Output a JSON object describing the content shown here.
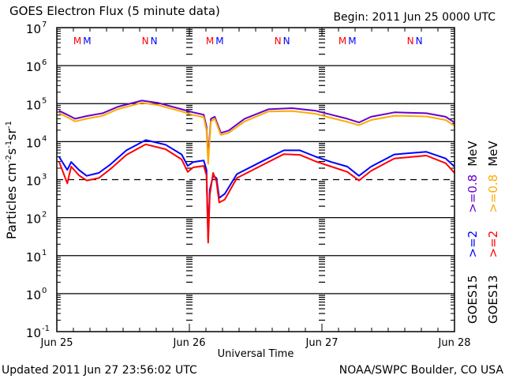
{
  "header": {
    "title": "GOES Electron Flux (5 minute data)",
    "begin": "Begin: 2011 Jun 25 0000 UTC"
  },
  "footer": {
    "updated": "Updated 2011 Jun 27 23:56:02 UTC",
    "source": "NOAA/SWPC Boulder, CO USA"
  },
  "colors": {
    "goes15_2": "#0000ff",
    "goes13_2": "#ff0000",
    "goes15_08": "#6600cc",
    "goes13_08": "#ffaa00"
  },
  "chart_data": {
    "type": "line",
    "title": "GOES Electron Flux (5 minute data)",
    "xlabel": "Universal Time",
    "ylabel": "Particles cm-2 s-1 sr-1",
    "yscale": "log",
    "ylim": [
      0.1,
      10000000
    ],
    "xlim_hours": [
      0,
      72
    ],
    "x_ticks": [
      {
        "hour": 0,
        "label": "Jun 25"
      },
      {
        "hour": 24,
        "label": "Jun 26"
      },
      {
        "hour": 48,
        "label": "Jun 27"
      },
      {
        "hour": 72,
        "label": "Jun 28"
      }
    ],
    "y_ticks": [
      {
        "base": "10",
        "exp": "7"
      },
      {
        "base": "10",
        "exp": "6"
      },
      {
        "base": "10",
        "exp": "5"
      },
      {
        "base": "10",
        "exp": "4"
      },
      {
        "base": "10",
        "exp": "3"
      },
      {
        "base": "10",
        "exp": "2"
      },
      {
        "base": "10",
        "exp": "1"
      },
      {
        "base": "10",
        "exp": "0"
      },
      {
        "base": "10",
        "exp": "-1"
      }
    ],
    "threshold": 1000,
    "ylabel_parts": {
      "a": "Particles cm",
      "b": "-2",
      "c": "s",
      "d": "-1",
      "e": "sr",
      "f": "-1"
    },
    "legend": {
      "col1": {
        "sat": "GOES15",
        "e2": ">=2",
        "e08": ">=0.8",
        "unit": "MeV"
      },
      "col2": {
        "sat": "GOES13",
        "e2": ">=2",
        "e08": ">=0.8",
        "unit": "MeV"
      }
    },
    "markers": [
      {
        "hour": 4.6,
        "label1": "M",
        "label2": "M"
      },
      {
        "hour": 16.8,
        "label1": "N",
        "label2": "N"
      },
      {
        "hour": 28.6,
        "label1": "M",
        "label2": "M"
      },
      {
        "hour": 40.8,
        "label1": "N",
        "label2": "N"
      },
      {
        "hour": 52.6,
        "label1": "M",
        "label2": "M"
      },
      {
        "hour": 64.8,
        "label1": "N",
        "label2": "N"
      }
    ],
    "series": [
      {
        "name": "GOES15 >=0.8 MeV",
        "color": "#6600cc",
        "points": [
          [
            0.4,
            65000
          ],
          [
            1.9,
            51000
          ],
          [
            3.3,
            40000
          ],
          [
            5.4,
            47000
          ],
          [
            8.3,
            56000
          ],
          [
            11.1,
            83000
          ],
          [
            15.4,
            120000
          ],
          [
            18.3,
            105000
          ],
          [
            22.6,
            71000
          ],
          [
            24.7,
            59000
          ],
          [
            26.6,
            51000
          ],
          [
            27.1,
            25000
          ],
          [
            27.4,
            3600
          ],
          [
            27.9,
            40000
          ],
          [
            28.6,
            45000
          ],
          [
            29.7,
            17000
          ],
          [
            31.1,
            19500
          ],
          [
            34,
            40000
          ],
          [
            38.3,
            71000
          ],
          [
            42.6,
            76000
          ],
          [
            46.9,
            65000
          ],
          [
            49.7,
            51000
          ],
          [
            52.6,
            40000
          ],
          [
            54.7,
            32000
          ],
          [
            56.9,
            45000
          ],
          [
            61.1,
            59000
          ],
          [
            66.9,
            56000
          ],
          [
            70.4,
            45000
          ],
          [
            72,
            32000
          ]
        ]
      },
      {
        "name": "GOES13 >=0.8 MeV",
        "color": "#ffaa00",
        "points": [
          [
            0.4,
            56000
          ],
          [
            1.9,
            44000
          ],
          [
            3.3,
            34000
          ],
          [
            5.4,
            40000
          ],
          [
            8.3,
            48000
          ],
          [
            11.1,
            72000
          ],
          [
            15.4,
            105000
          ],
          [
            18.3,
            92000
          ],
          [
            22.6,
            62000
          ],
          [
            24.7,
            50000
          ],
          [
            26.6,
            44000
          ],
          [
            27.1,
            20000
          ],
          [
            27.4,
            2600
          ],
          [
            27.9,
            34000
          ],
          [
            28.6,
            40000
          ],
          [
            29.7,
            15000
          ],
          [
            31.1,
            17000
          ],
          [
            34,
            34000
          ],
          [
            38.3,
            62000
          ],
          [
            42.6,
            64000
          ],
          [
            46.9,
            54000
          ],
          [
            49.7,
            42000
          ],
          [
            52.6,
            33000
          ],
          [
            54.7,
            27000
          ],
          [
            56.9,
            37000
          ],
          [
            61.1,
            48000
          ],
          [
            66.9,
            46000
          ],
          [
            70.4,
            37000
          ],
          [
            72,
            26000
          ]
        ]
      },
      {
        "name": "GOES15 >=2 MeV",
        "color": "#0000ff",
        "points": [
          [
            0.4,
            4000
          ],
          [
            1.9,
            1800
          ],
          [
            2.6,
            2900
          ],
          [
            4,
            1800
          ],
          [
            5.4,
            1260
          ],
          [
            7.6,
            1500
          ],
          [
            9.7,
            2500
          ],
          [
            12.6,
            5900
          ],
          [
            16.1,
            11000
          ],
          [
            19.7,
            8300
          ],
          [
            22.6,
            4600
          ],
          [
            23.7,
            2300
          ],
          [
            24.7,
            2900
          ],
          [
            26.6,
            3200
          ],
          [
            27.1,
            1800
          ],
          [
            27.4,
            28
          ],
          [
            27.7,
            540
          ],
          [
            28.3,
            1260
          ],
          [
            28.9,
            1100
          ],
          [
            29.4,
            330
          ],
          [
            30.4,
            420
          ],
          [
            32.6,
            1400
          ],
          [
            36.9,
            2900
          ],
          [
            41.1,
            5900
          ],
          [
            44,
            5900
          ],
          [
            46.9,
            4000
          ],
          [
            49.7,
            2900
          ],
          [
            52.6,
            2200
          ],
          [
            54.7,
            1260
          ],
          [
            56.9,
            2200
          ],
          [
            61.1,
            4600
          ],
          [
            66.9,
            5400
          ],
          [
            70.4,
            3600
          ],
          [
            72,
            2200
          ]
        ]
      },
      {
        "name": "GOES13 >=2 MeV",
        "color": "#ff0000",
        "points": [
          [
            0.4,
            3000
          ],
          [
            1.9,
            800
          ],
          [
            2.6,
            2200
          ],
          [
            4,
            1300
          ],
          [
            5.4,
            950
          ],
          [
            7.6,
            1100
          ],
          [
            9.7,
            1900
          ],
          [
            12.6,
            4500
          ],
          [
            16.1,
            8500
          ],
          [
            19.7,
            6300
          ],
          [
            22.6,
            3400
          ],
          [
            23.7,
            1600
          ],
          [
            24.7,
            2100
          ],
          [
            26.6,
            2300
          ],
          [
            27.1,
            1300
          ],
          [
            27.4,
            22
          ],
          [
            27.7,
            400
          ],
          [
            28.3,
            1500
          ],
          [
            28.9,
            900
          ],
          [
            29.4,
            250
          ],
          [
            30.4,
            300
          ],
          [
            32.6,
            1100
          ],
          [
            36.9,
            2300
          ],
          [
            41.1,
            4700
          ],
          [
            44,
            4500
          ],
          [
            46.9,
            3000
          ],
          [
            49.7,
            2200
          ],
          [
            52.6,
            1600
          ],
          [
            54.7,
            950
          ],
          [
            56.9,
            1700
          ],
          [
            61.1,
            3600
          ],
          [
            66.9,
            4300
          ],
          [
            70.4,
            2700
          ],
          [
            72,
            1500
          ]
        ]
      }
    ]
  }
}
